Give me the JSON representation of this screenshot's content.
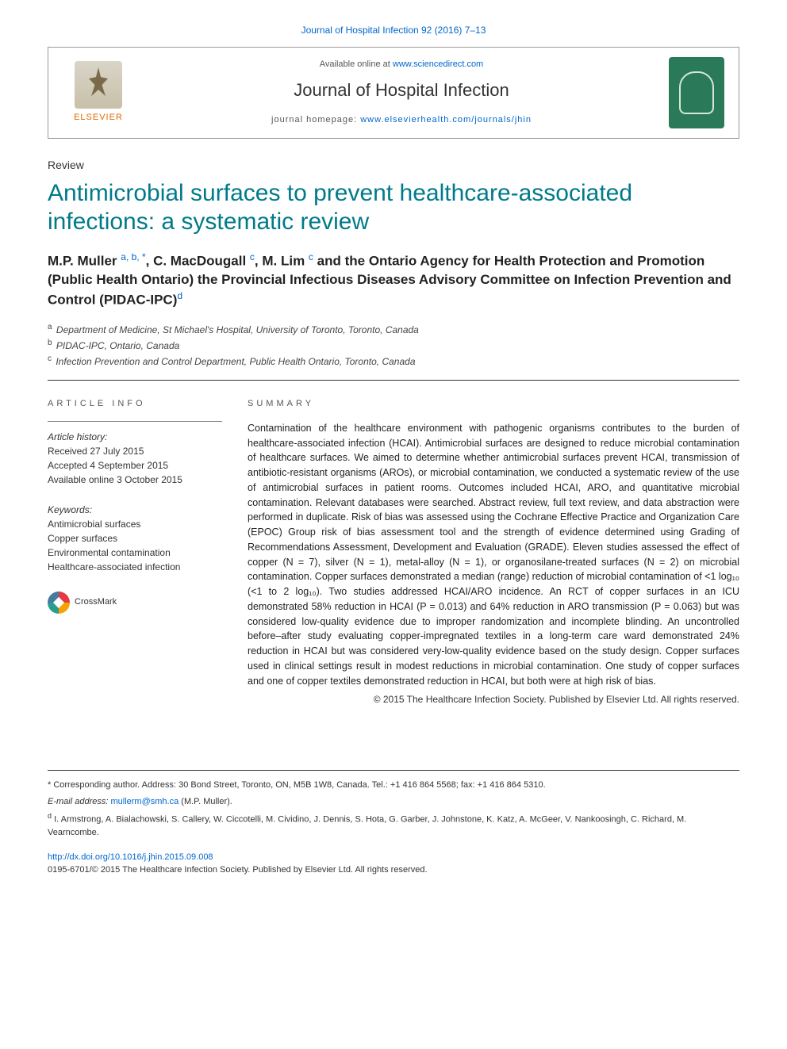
{
  "citation_line": "Journal of Hospital Infection 92 (2016) 7–13",
  "header": {
    "available_prefix": "Available online at ",
    "available_link": "www.sciencedirect.com",
    "journal_name": "Journal of Hospital Infection",
    "homepage_prefix": "journal homepage: ",
    "homepage_link": "www.elsevierhealth.com/journals/jhin",
    "publisher_label": "ELSEVIER"
  },
  "article_type": "Review",
  "title": "Antimicrobial surfaces to prevent healthcare-associated infections: a systematic review",
  "authors_html": "M.P. Muller <sup>a, b, *</sup>, C. MacDougall <sup>c</sup>, M. Lim <sup>c</sup> and the Ontario Agency for Health Protection and Promotion (Public Health Ontario) the Provincial Infectious Diseases Advisory Committee on Infection Prevention and Control (PIDAC-IPC)<sup>d</sup>",
  "affiliations": [
    {
      "sup": "a",
      "text": "Department of Medicine, St Michael's Hospital, University of Toronto, Toronto, Canada"
    },
    {
      "sup": "b",
      "text": "PIDAC-IPC, Ontario, Canada"
    },
    {
      "sup": "c",
      "text": "Infection Prevention and Control Department, Public Health Ontario, Toronto, Canada"
    }
  ],
  "article_info": {
    "heading": "ARTICLE INFO",
    "history_label": "Article history:",
    "received": "Received 27 July 2015",
    "accepted": "Accepted 4 September 2015",
    "online": "Available online 3 October 2015",
    "keywords_label": "Keywords:",
    "keywords": [
      "Antimicrobial surfaces",
      "Copper surfaces",
      "Environmental contamination",
      "Healthcare-associated infection"
    ],
    "crossmark_label": "CrossMark"
  },
  "summary": {
    "heading": "SUMMARY",
    "body": "Contamination of the healthcare environment with pathogenic organisms contributes to the burden of healthcare-associated infection (HCAI). Antimicrobial surfaces are designed to reduce microbial contamination of healthcare surfaces. We aimed to determine whether antimicrobial surfaces prevent HCAI, transmission of antibiotic-resistant organisms (AROs), or microbial contamination, we conducted a systematic review of the use of antimicrobial surfaces in patient rooms. Outcomes included HCAI, ARO, and quantitative microbial contamination. Relevant databases were searched. Abstract review, full text review, and data abstraction were performed in duplicate. Risk of bias was assessed using the Cochrane Effective Practice and Organization Care (EPOC) Group risk of bias assessment tool and the strength of evidence determined using Grading of Recommendations Assessment, Development and Evaluation (GRADE). Eleven studies assessed the effect of copper (N = 7), silver (N = 1), metal-alloy (N = 1), or organosilane-treated surfaces (N = 2) on microbial contamination. Copper surfaces demonstrated a median (range) reduction of microbial contamination of <1 log₁₀ (<1 to 2 log₁₀). Two studies addressed HCAI/ARO incidence. An RCT of copper surfaces in an ICU demonstrated 58% reduction in HCAI (P = 0.013) and 64% reduction in ARO transmission (P = 0.063) but was considered low-quality evidence due to improper randomization and incomplete blinding. An uncontrolled before–after study evaluating copper-impregnated textiles in a long-term care ward demonstrated 24% reduction in HCAI but was considered very-low-quality evidence based on the study design. Copper surfaces used in clinical settings result in modest reductions in microbial contamination. One study of copper surfaces and one of copper textiles demonstrated reduction in HCAI, but both were at high risk of bias.",
    "copyright": "© 2015 The Healthcare Infection Society. Published by Elsevier Ltd. All rights reserved."
  },
  "footnotes": {
    "corresponding": "* Corresponding author. Address: 30 Bond Street, Toronto, ON, M5B 1W8, Canada. Tel.: +1 416 864 5568; fax: +1 416 864 5310.",
    "email_label": "E-mail address: ",
    "email_link": "mullerm@smh.ca",
    "email_suffix": " (M.P. Muller).",
    "note_d": "d I. Armstrong, A. Bialachowski, S. Callery, W. Ciccotelli, M. Cividino, J. Dennis, S. Hota, G. Garber, J. Johnstone, K. Katz, A. McGeer, V. Nankoosingh, C. Richard, M. Vearncombe."
  },
  "doi": {
    "link": "http://dx.doi.org/10.1016/j.jhin.2015.09.008",
    "issn_line": "0195-6701/© 2015 The Healthcare Infection Society. Published by Elsevier Ltd. All rights reserved."
  },
  "colors": {
    "link": "#0066cc",
    "title": "#007a8a",
    "publisher": "#e06a00",
    "cover": "#2a7a5a"
  }
}
